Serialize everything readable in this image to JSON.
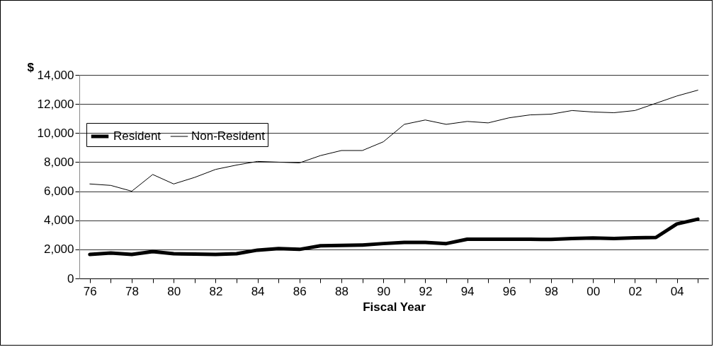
{
  "chart_data": {
    "type": "line",
    "ylabel": "$",
    "xlabel": "Fiscal Year",
    "categories": [
      "76",
      null,
      "78",
      null,
      "80",
      null,
      "82",
      null,
      "84",
      null,
      "86",
      null,
      "88",
      null,
      "90",
      null,
      "92",
      null,
      "94",
      null,
      "96",
      null,
      "98",
      null,
      "00",
      null,
      "02",
      null,
      "04",
      null
    ],
    "series": [
      {
        "name": "Resident",
        "color": "#000000",
        "values": [
          1650,
          1750,
          1650,
          1850,
          1700,
          1680,
          1650,
          1700,
          1950,
          2050,
          2000,
          2250,
          2270,
          2300,
          2400,
          2480,
          2480,
          2400,
          2700,
          2700,
          2700,
          2700,
          2680,
          2750,
          2780,
          2750,
          2800,
          2820,
          3750,
          4080
        ]
      },
      {
        "name": "Non-Resident",
        "color": "#000000",
        "values": [
          6500,
          6400,
          6000,
          7150,
          6500,
          6950,
          7500,
          7800,
          8050,
          8000,
          7950,
          8450,
          8800,
          8800,
          9400,
          10600,
          10900,
          10600,
          10800,
          10700,
          11050,
          11250,
          11300,
          11550,
          11450,
          11400,
          11550,
          12050,
          12550,
          12950
        ]
      }
    ],
    "ylim": [
      0,
      14000
    ],
    "yticks": [
      0,
      {
        "value": 2000,
        "label": "2,000"
      },
      {
        "value": 4000,
        "label": "4,000"
      },
      {
        "value": 6000,
        "label": "6,000"
      },
      {
        "value": 8000,
        "label": "8,000"
      },
      {
        "value": 10000,
        "label": "10,000"
      },
      {
        "value": 12000,
        "label": "12,000"
      },
      {
        "value": 14000,
        "label": "14,000"
      }
    ],
    "grid": "y",
    "legend": "top left",
    "marker": "none",
    "line_style": "solid"
  }
}
